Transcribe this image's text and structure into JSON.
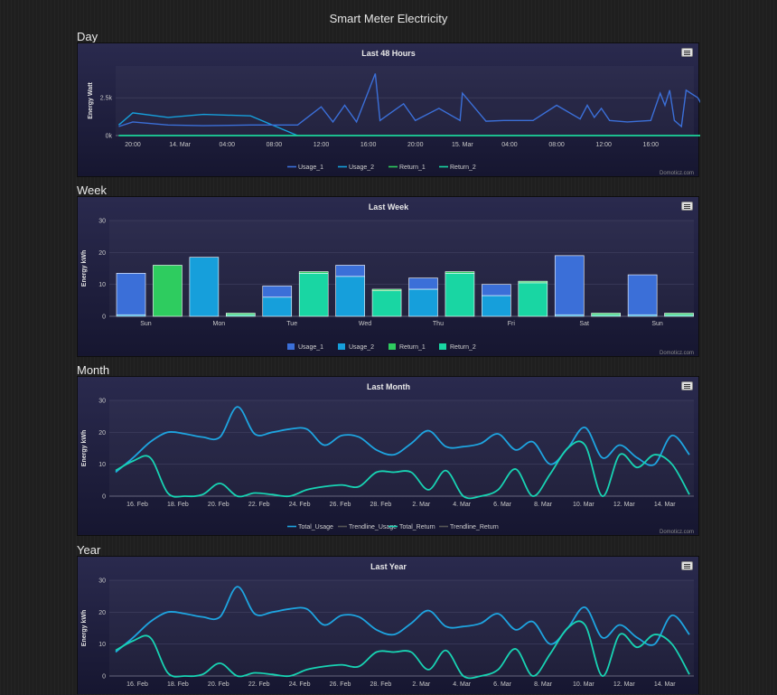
{
  "page": {
    "title": "Smart Meter Electricity",
    "menu_icon": "hamburger-icon"
  },
  "sections": [
    {
      "label": "Day"
    },
    {
      "label": "Week"
    },
    {
      "label": "Month"
    },
    {
      "label": "Year"
    }
  ],
  "colors": {
    "usage_1": "#3b6fd8",
    "usage_2": "#169fdb",
    "return_1": "#2ecc5f",
    "return_2": "#19d6a3",
    "total_usage": "#1ea4e0",
    "total_return": "#18d3b3",
    "trendline": "#555555"
  },
  "chart_data": [
    {
      "id": "day",
      "type": "line",
      "title": "Last 48 Hours",
      "ylabel": "Energy Watt",
      "ylim": [
        0,
        4600
      ],
      "yticks": [
        0,
        2500
      ],
      "ytick_labels": [
        "0k",
        "2.5k"
      ],
      "xtick_labels": [
        "20:00",
        "14. Mar",
        "04:00",
        "08:00",
        "12:00",
        "16:00",
        "20:00",
        "15. Mar",
        "04:00",
        "08:00",
        "12:00",
        "16:00"
      ],
      "x_hours": [
        -1.2,
        0,
        3,
        6,
        10,
        14,
        16,
        17,
        18,
        19,
        20.6,
        21,
        23,
        24,
        26,
        27.8,
        28,
        30,
        31.5,
        34,
        36,
        38,
        38.6,
        39.2,
        39.8,
        40.5,
        42,
        44,
        44.8,
        45.2,
        45.6,
        46,
        46.6,
        47,
        48,
        49,
        50,
        50.9
      ],
      "series": [
        {
          "name": "Usage_1",
          "values": [
            600,
            900,
            700,
            650,
            700,
            700,
            1900,
            900,
            2000,
            900,
            4100,
            1000,
            2100,
            1000,
            1800,
            1000,
            2800,
            950,
            1000,
            1000,
            2000,
            1100,
            2000,
            1200,
            1800,
            1000,
            900,
            1000,
            2800,
            2000,
            3000,
            1000,
            600,
            3000,
            2500,
            1100,
            1300,
            1100
          ]
        },
        {
          "name": "Usage_2",
          "values": [
            700,
            1500,
            1200,
            1400,
            1300,
            0,
            0,
            0,
            0,
            0,
            0,
            0,
            0,
            0,
            0,
            0,
            0,
            0,
            0,
            0,
            0,
            0,
            0,
            0,
            0,
            0,
            0,
            0,
            0,
            0,
            0,
            0,
            0,
            0,
            0,
            0,
            0,
            0
          ]
        },
        {
          "name": "Return_1",
          "values": [
            0,
            0,
            0,
            0,
            0,
            0,
            0,
            0,
            0,
            0,
            0,
            0,
            0,
            0,
            0,
            0,
            0,
            0,
            0,
            0,
            0,
            0,
            0,
            0,
            0,
            0,
            0,
            0,
            0,
            0,
            0,
            0,
            0,
            0,
            0,
            0,
            0,
            0
          ]
        },
        {
          "name": "Return_2",
          "values": [
            0,
            0,
            0,
            0,
            0,
            0,
            0,
            0,
            0,
            0,
            0,
            0,
            0,
            0,
            0,
            0,
            0,
            0,
            0,
            0,
            0,
            0,
            0,
            0,
            0,
            0,
            0,
            0,
            0,
            0,
            0,
            0,
            0,
            0,
            0,
            0,
            0,
            0
          ]
        }
      ],
      "legend": [
        "Usage_1",
        "Usage_2",
        "Return_1",
        "Return_2"
      ],
      "credit": "Domoticz.com"
    },
    {
      "id": "week",
      "type": "bar",
      "title": "Last Week",
      "ylabel": "Energy kWh",
      "ylim": [
        0,
        30
      ],
      "yticks": [
        0,
        10,
        20,
        30
      ],
      "categories": [
        "Sun",
        "Mon",
        "Tue",
        "Wed",
        "Thu",
        "Fri",
        "Sat",
        "Sun"
      ],
      "series": [
        {
          "name": "Usage_1",
          "values": [
            13,
            0,
            3.5,
            3.5,
            3.5,
            3.5,
            18.5,
            12.5
          ]
        },
        {
          "name": "Usage_2",
          "values": [
            0.5,
            18.5,
            6,
            12.5,
            8.5,
            6.5,
            0.5,
            0.5
          ]
        },
        {
          "name": "Return_1",
          "values": [
            16,
            0.5,
            0.5,
            0.5,
            0.5,
            0.5,
            0.5,
            0.5
          ]
        },
        {
          "name": "Return_2",
          "values": [
            0,
            0.5,
            13.5,
            8,
            13.5,
            10.5,
            0.5,
            0.5
          ]
        }
      ],
      "legend": [
        "Usage_1",
        "Usage_2",
        "Return_1",
        "Return_2"
      ],
      "credit": "Domoticz.com"
    },
    {
      "id": "month",
      "type": "line",
      "title": "Last Month",
      "ylabel": "Energy kWh",
      "ylim": [
        0,
        30
      ],
      "yticks": [
        0,
        10,
        20,
        30
      ],
      "xtick_labels": [
        "16. Feb",
        "18. Feb",
        "20. Feb",
        "22. Feb",
        "24. Feb",
        "26. Feb",
        "28. Feb",
        "2. Mar",
        "4. Mar",
        "6. Mar",
        "8. Mar",
        "10. Mar",
        "12. Mar",
        "14. Mar"
      ],
      "series": [
        {
          "name": "Total_Usage",
          "values": [
            7.5,
            12,
            17,
            20,
            19.5,
            18.5,
            18.5,
            28,
            19.5,
            20,
            21,
            21,
            16,
            19,
            18.5,
            14.5,
            13,
            16.5,
            20.5,
            15.5,
            15.5,
            16.5,
            19.5,
            14.5,
            17,
            10,
            15,
            21.5,
            12,
            16,
            12,
            10,
            19,
            13
          ]
        },
        {
          "name": "Trendline_Usage",
          "values": []
        },
        {
          "name": "Total_Return",
          "values": [
            8,
            11,
            12,
            1,
            0,
            0.5,
            4,
            0,
            1,
            0.5,
            0,
            2,
            3,
            3.5,
            3,
            7.5,
            7.5,
            7.5,
            2,
            8,
            0,
            0,
            2,
            8.5,
            0,
            7,
            15,
            16,
            0,
            13,
            9,
            13,
            10,
            0.5
          ]
        },
        {
          "name": "Trendline_Return",
          "values": []
        }
      ],
      "legend": [
        "Total_Usage",
        "Trendline_Usage",
        "Total_Return",
        "Trendline_Return"
      ],
      "credit": "Domoticz.com"
    },
    {
      "id": "year",
      "type": "line",
      "title": "Last Year",
      "ylabel": "Energy kWh",
      "ylim": [
        0,
        30
      ],
      "yticks": [
        0,
        10,
        20,
        30
      ],
      "xtick_labels": [
        "16. Feb",
        "18. Feb",
        "20. Feb",
        "22. Feb",
        "24. Feb",
        "26. Feb",
        "28. Feb",
        "2. Mar",
        "4. Mar",
        "6. Mar",
        "8. Mar",
        "10. Mar",
        "12. Mar",
        "14. Mar"
      ],
      "series": [
        {
          "name": "Total_Usage",
          "values": [
            7.5,
            12,
            17,
            20,
            19.5,
            18.5,
            18.5,
            28,
            19.5,
            20,
            21,
            21,
            16,
            19,
            18.5,
            14.5,
            13,
            16.5,
            20.5,
            15.5,
            15.5,
            16.5,
            19.5,
            14.5,
            17,
            10,
            15,
            21.5,
            12,
            16,
            12,
            10,
            19,
            13
          ]
        },
        {
          "name": "Total_Return",
          "values": [
            8,
            11,
            12,
            1,
            0,
            0.5,
            4,
            0,
            1,
            0.5,
            0,
            2,
            3,
            3.5,
            3,
            7.5,
            7.5,
            7.5,
            2,
            8,
            0,
            0,
            2,
            8.5,
            0,
            7,
            15,
            16,
            0,
            13,
            9,
            13,
            10,
            0.5
          ]
        }
      ],
      "legend": [],
      "credit": ""
    }
  ]
}
